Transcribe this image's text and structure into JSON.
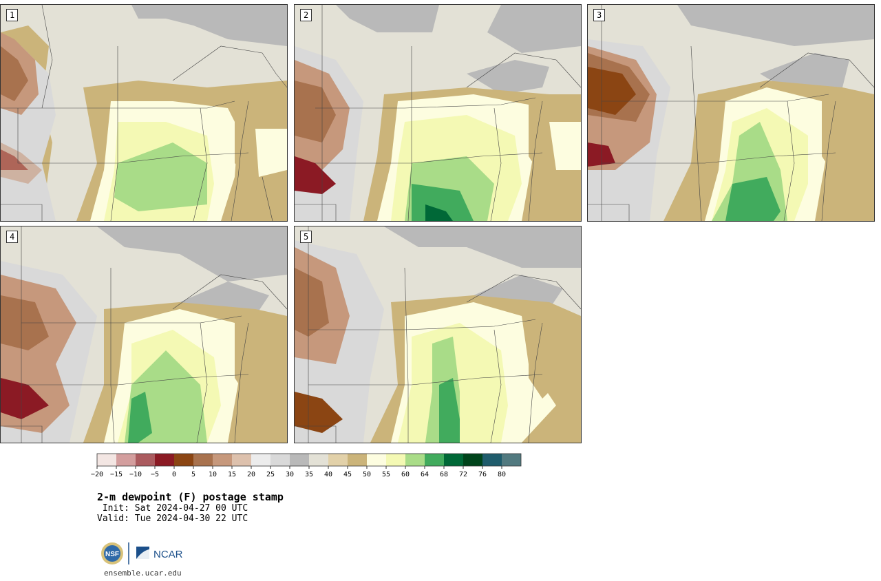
{
  "figure": {
    "title": "2-m dewpoint (F) postage stamp",
    "init": " Init: Sat 2024-04-27 00 UTC",
    "valid": "Valid: Tue 2024-04-30 22 UTC",
    "website": "ensemble.ucar.edu",
    "logos": [
      "NSF",
      "NCAR"
    ]
  },
  "panels": [
    {
      "label": "1"
    },
    {
      "label": "2"
    },
    {
      "label": "3"
    },
    {
      "label": "4"
    },
    {
      "label": "5"
    }
  ],
  "colorbar": {
    "tick_labels": [
      "−20",
      "−15",
      "−10",
      "−5",
      "0",
      "5",
      "10",
      "15",
      "20",
      "25",
      "30",
      "35",
      "40",
      "45",
      "50",
      "55",
      "60",
      "64",
      "68",
      "72",
      "76",
      "80"
    ],
    "colors": [
      "#f3e6e3",
      "#d39e9e",
      "#ab5b5f",
      "#8b1a24",
      "#8b4513",
      "#a8724e",
      "#c6987c",
      "#ddc1ad",
      "#ececec",
      "#d9d9d9",
      "#b9b9b9",
      "#e3e1d6",
      "#e2d1a9",
      "#cbb47a",
      "#fdfde0",
      "#f4f9b4",
      "#a9dc88",
      "#41ab5d",
      "#006837",
      "#00441b",
      "#1f5c6c",
      "#527a80"
    ]
  }
}
